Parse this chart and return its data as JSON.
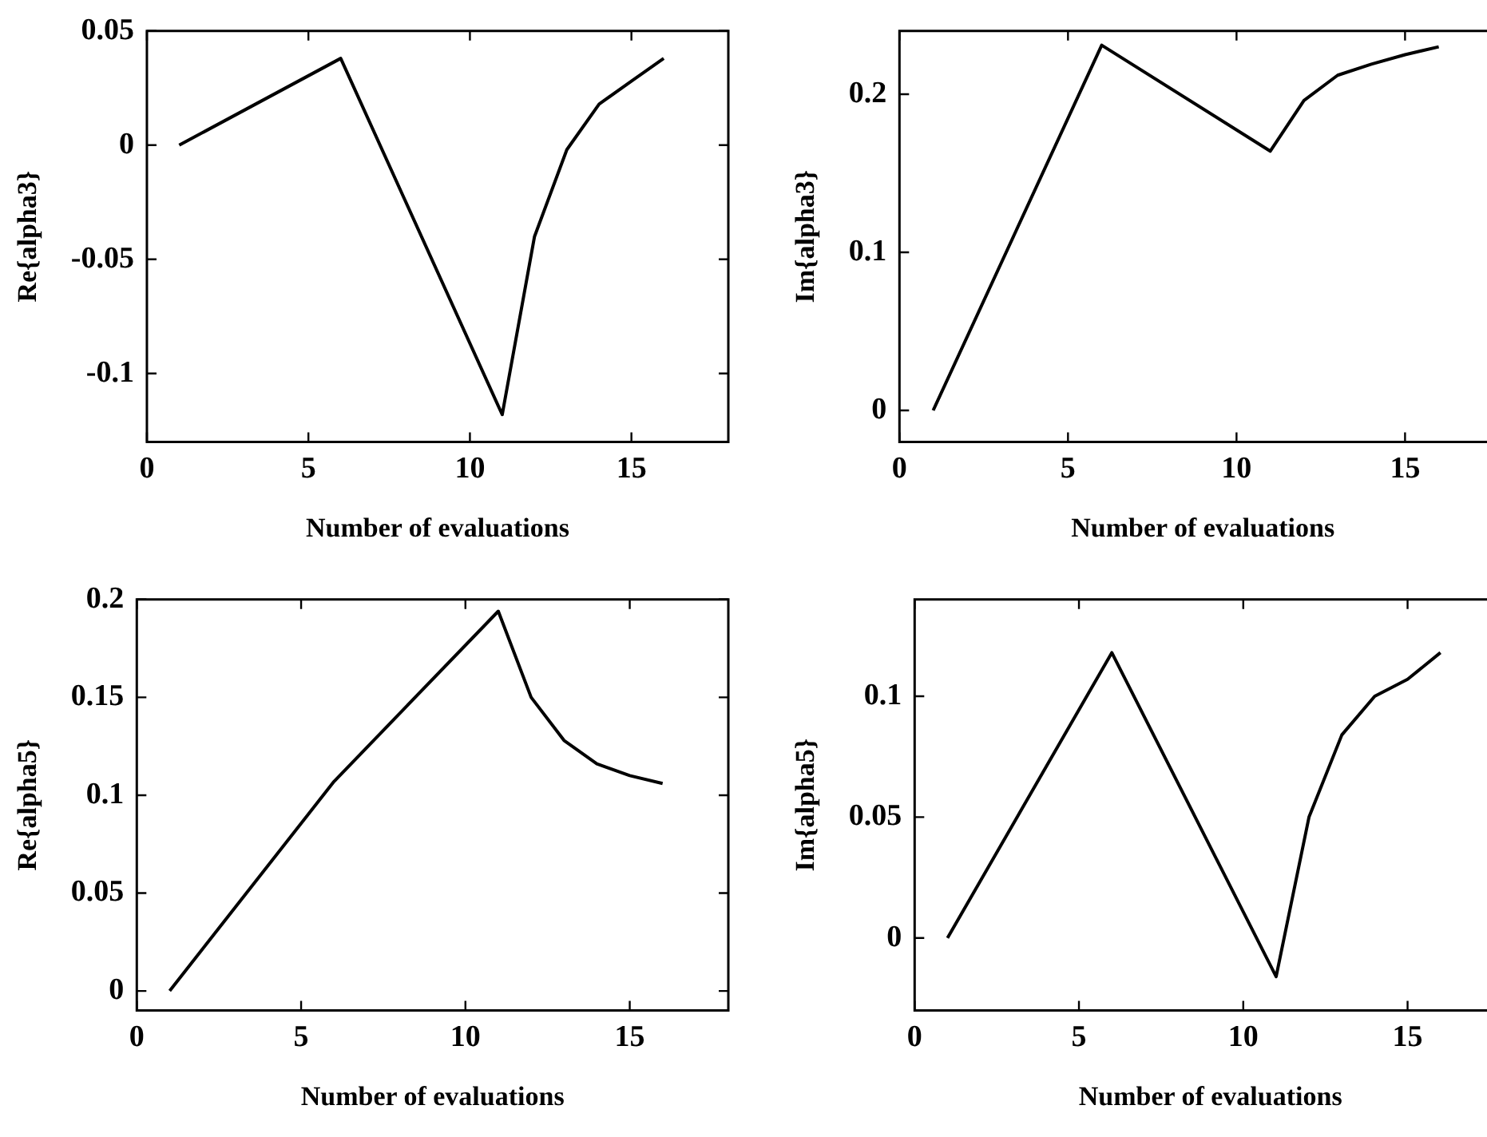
{
  "chart_data": [
    {
      "type": "line",
      "xlabel": "Number of evaluations",
      "ylabel": "Re{alpha3}",
      "x": [
        1,
        6,
        11,
        12,
        13,
        14,
        15,
        16
      ],
      "values": [
        0,
        0.038,
        -0.118,
        -0.04,
        -0.002,
        0.018,
        0.028,
        0.038
      ],
      "color": "#000000",
      "xlim": [
        0,
        18
      ],
      "ylim": [
        -0.13,
        0.05
      ],
      "xticks": [
        0,
        5,
        10,
        15
      ],
      "yticks": [
        {
          "value": -0.1,
          "label": "-0.1"
        },
        {
          "value": -0.05,
          "label": "-0.05"
        },
        0,
        0.05
      ],
      "marker": "none"
    },
    {
      "type": "line",
      "xlabel": "Number of evaluations",
      "ylabel": "Im{alpha3}",
      "x": [
        1,
        6,
        11,
        12,
        13,
        14,
        15,
        16
      ],
      "values": [
        0,
        0.231,
        0.164,
        0.196,
        0.212,
        0.219,
        0.225,
        0.23
      ],
      "color": "#000000",
      "xlim": [
        0,
        18
      ],
      "ylim": [
        -0.02,
        0.24
      ],
      "xticks": [
        0,
        5,
        10,
        15
      ],
      "yticks": [
        0,
        0.1,
        0.2
      ],
      "marker": "none"
    },
    {
      "type": "line",
      "xlabel": "Number of evaluations",
      "ylabel": "Re{alpha5}",
      "x": [
        1,
        6,
        11,
        12,
        13,
        14,
        15,
        16
      ],
      "values": [
        0,
        0.107,
        0.194,
        0.15,
        0.128,
        0.116,
        0.11,
        0.106
      ],
      "color": "#000000",
      "xlim": [
        0,
        18
      ],
      "ylim": [
        -0.01,
        0.2
      ],
      "xticks": [
        0,
        5,
        10,
        15
      ],
      "yticks": [
        0,
        0.05,
        0.1,
        0.15,
        0.2
      ],
      "marker": "none"
    },
    {
      "type": "line",
      "xlabel": "Number of evaluations",
      "ylabel": "Im{alpha5}",
      "x": [
        1,
        6,
        11,
        12,
        13,
        14,
        15,
        16
      ],
      "values": [
        0,
        0.118,
        -0.016,
        0.05,
        0.084,
        0.1,
        0.107,
        0.118
      ],
      "color": "#000000",
      "xlim": [
        0,
        18
      ],
      "ylim": [
        -0.03,
        0.14
      ],
      "xticks": [
        0,
        5,
        10,
        15
      ],
      "yticks": [
        0,
        0.05,
        0.1
      ],
      "marker": "none"
    }
  ]
}
